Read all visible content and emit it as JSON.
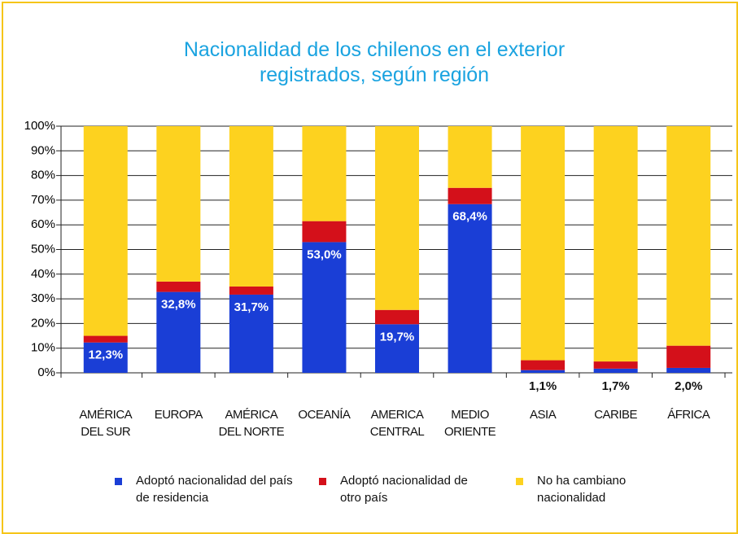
{
  "chart_data": {
    "type": "stacked_bar",
    "title": "Nacionalidad de los chilenos en el exterior registrados, según región",
    "categories": [
      "AMÉRICA DEL SUR",
      "EUROPA",
      "AMÉRICA DEL NORTE",
      "OCEANÍA",
      "AMERICA CENTRAL",
      "MEDIO ORIENTE",
      "ASIA",
      "CARIBE",
      "ÁFRICA"
    ],
    "series": [
      {
        "name": "Adoptó nacionalidad del país de residencia",
        "color": "#1a3ed6",
        "values": [
          12.3,
          32.8,
          31.7,
          53.0,
          19.7,
          68.4,
          1.1,
          1.7,
          2.0
        ],
        "value_labels": [
          "12,3%",
          "32,8%",
          "31,7%",
          "53,0%",
          "19,7%",
          "68,4%",
          "1,1%",
          "1,7%",
          "2,0%"
        ]
      },
      {
        "name": "Adoptó nacionalidad de otro país",
        "color": "#d4101a",
        "values": [
          2.7,
          4.2,
          3.3,
          8.5,
          5.8,
          6.6,
          4.0,
          2.9,
          9.0
        ]
      },
      {
        "name": "No ha cambiano nacionalidad",
        "color": "#fdd21f",
        "values": [
          85.0,
          63.0,
          65.0,
          38.5,
          74.5,
          25.0,
          94.9,
          95.4,
          89.0
        ]
      }
    ],
    "ylim": [
      0,
      100
    ],
    "yticks": [
      {
        "value": 0,
        "label": "0%"
      },
      {
        "value": 10,
        "label": "10%"
      },
      {
        "value": 20,
        "label": "20%"
      },
      {
        "value": 30,
        "label": "30%"
      },
      {
        "value": 40,
        "label": "40%"
      },
      {
        "value": 50,
        "label": "50%"
      },
      {
        "value": 60,
        "label": "60%"
      },
      {
        "value": 70,
        "label": "70%"
      },
      {
        "value": 80,
        "label": "80%"
      },
      {
        "value": 90,
        "label": "90%"
      },
      {
        "value": 100,
        "label": "100%"
      }
    ],
    "grid": true,
    "legend": "bottom"
  }
}
